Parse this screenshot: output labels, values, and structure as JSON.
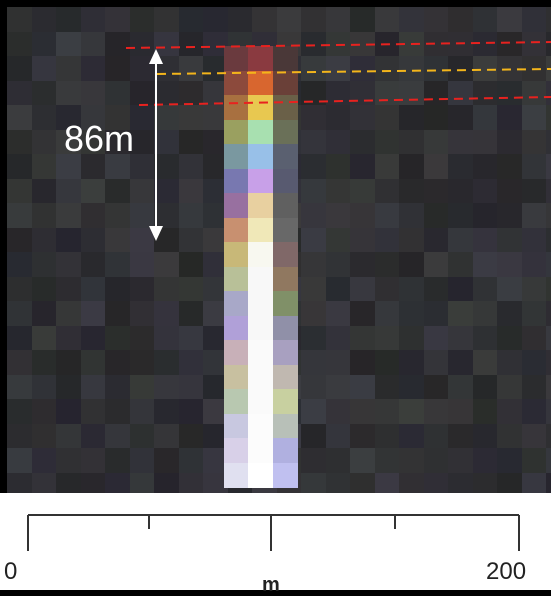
{
  "annotation": {
    "height_label": "86m",
    "arrow_color": "#ffffff",
    "top_line_color": "#e8221f",
    "mid_line_color": "#f3b51b",
    "bottom_line_color": "#e8221f"
  },
  "scale_bar": {
    "start_label": "0",
    "end_label": "200",
    "unit_label": "m"
  },
  "colors": {
    "background_dark": "#2f2f35",
    "scale_panel": "#ffffff"
  }
}
